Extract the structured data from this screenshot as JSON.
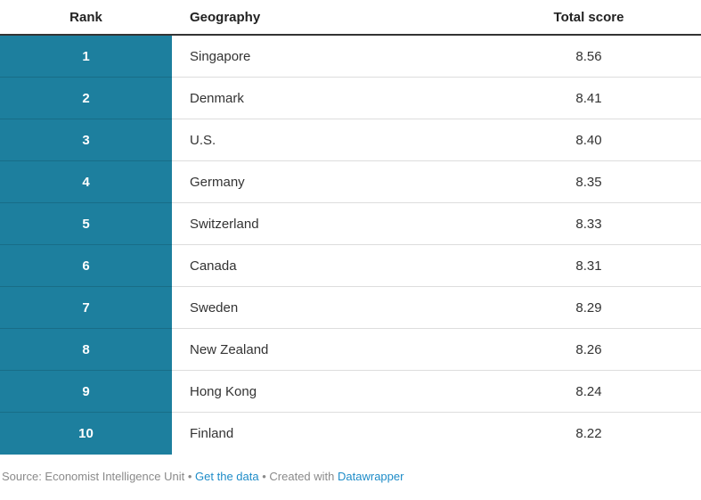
{
  "table": {
    "columns": [
      {
        "label": "Rank"
      },
      {
        "label": "Geography"
      },
      {
        "label": "Total score"
      }
    ],
    "rows": [
      {
        "rank": "1",
        "geography": "Singapore",
        "score": "8.56"
      },
      {
        "rank": "2",
        "geography": "Denmark",
        "score": "8.41"
      },
      {
        "rank": "3",
        "geography": "U.S.",
        "score": "8.40"
      },
      {
        "rank": "4",
        "geography": "Germany",
        "score": "8.35"
      },
      {
        "rank": "5",
        "geography": "Switzerland",
        "score": "8.33"
      },
      {
        "rank": "6",
        "geography": "Canada",
        "score": "8.31"
      },
      {
        "rank": "7",
        "geography": "Sweden",
        "score": "8.29"
      },
      {
        "rank": "8",
        "geography": "New Zealand",
        "score": "8.26"
      },
      {
        "rank": "9",
        "geography": "Hong Kong",
        "score": "8.24"
      },
      {
        "rank": "10",
        "geography": "Finland",
        "score": "8.22"
      }
    ]
  },
  "footer": {
    "source_label": "Source: Economist Intelligence Unit",
    "separator1": "•",
    "get_data_link": "Get the data",
    "separator2": "•",
    "created_with_label": "Created with",
    "datawrapper_link": "Datawrapper"
  },
  "colors": {
    "rank_bg": "#1d7f9e",
    "rank_text": "#ffffff",
    "text": "#333333",
    "header_border": "#333333",
    "row_border": "#dddddd",
    "footer_text": "#8a8a8a",
    "link": "#1e8cc8"
  },
  "chart_data": {
    "type": "table",
    "columns": [
      "Rank",
      "Geography",
      "Total score"
    ],
    "rows": [
      [
        1,
        "Singapore",
        8.56
      ],
      [
        2,
        "Denmark",
        8.41
      ],
      [
        3,
        "U.S.",
        8.4
      ],
      [
        4,
        "Germany",
        8.35
      ],
      [
        5,
        "Switzerland",
        8.33
      ],
      [
        6,
        "Canada",
        8.31
      ],
      [
        7,
        "Sweden",
        8.29
      ],
      [
        8,
        "New Zealand",
        8.26
      ],
      [
        9,
        "Hong Kong",
        8.24
      ],
      [
        10,
        "Finland",
        8.22
      ]
    ],
    "title": "",
    "source": "Economist Intelligence Unit",
    "layout_hints": {
      "rank_column_highlighted": true,
      "score_align": "center"
    }
  }
}
